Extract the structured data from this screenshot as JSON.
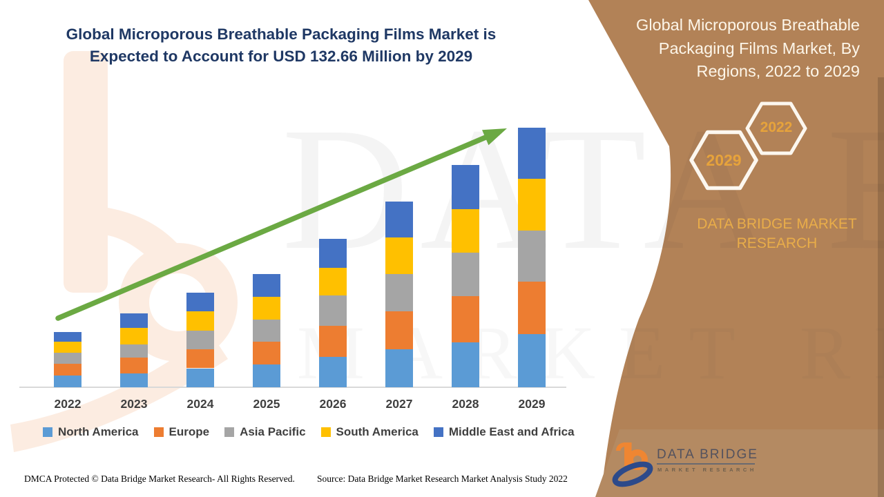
{
  "header": {
    "title_line1": "Global Microporous Breathable Packaging Films Market is",
    "title_line2": "Expected to Account for USD 132.66 Million by 2029"
  },
  "sidebar": {
    "title_line1": "Global Microporous Breathable",
    "title_line2": "Packaging Films Market, By",
    "title_line3": "Regions, 2022 to 2029",
    "hexagons": [
      {
        "label": "2029"
      },
      {
        "label": "2022"
      }
    ],
    "brand_line1": "DATA BRIDGE MARKET",
    "brand_line2": "RESEARCH",
    "colors": {
      "background_brown": "#b28257",
      "band_brown": "#b48a62",
      "gold_text": "#e7a33b",
      "cream_text": "#fdf6e9"
    }
  },
  "watermarks": {
    "big_text_line1": "DATA BRIDGE",
    "big_text_line2": "MARKET RESEARCH"
  },
  "chart_data": {
    "type": "bar",
    "stacked": true,
    "title": "Global Microporous Breathable Packaging Films Market is Expected to Account for USD 132.66 Million by 2029",
    "unit": "USD Million",
    "categories": [
      "2022",
      "2023",
      "2024",
      "2025",
      "2026",
      "2027",
      "2028",
      "2029"
    ],
    "series": [
      {
        "name": "North America",
        "color": "#5B9BD5",
        "values": [
          6.0,
          7.1,
          9.7,
          11.6,
          15.5,
          19.4,
          22.9,
          27.2
        ]
      },
      {
        "name": "Europe",
        "color": "#ED7D31",
        "values": [
          6.0,
          8.1,
          9.8,
          11.6,
          15.9,
          19.4,
          23.6,
          26.8
        ]
      },
      {
        "name": "Asia Pacific",
        "color": "#A5A5A5",
        "values": [
          5.6,
          6.7,
          9.6,
          11.5,
          15.5,
          19.1,
          22.2,
          26.1
        ]
      },
      {
        "name": "South America",
        "color": "#FFC000",
        "values": [
          5.6,
          8.5,
          9.7,
          11.6,
          14.1,
          18.7,
          22.2,
          26.5
        ]
      },
      {
        "name": "Middle East and Africa",
        "color": "#4472C4",
        "values": [
          5.0,
          7.4,
          9.6,
          11.5,
          14.8,
          18.3,
          22.6,
          26.1
        ]
      }
    ],
    "totals_estimated": [
      28.2,
      37.8,
      48.4,
      57.8,
      75.8,
      94.9,
      113.5,
      132.66
    ],
    "final_year_total_labelled": 132.66,
    "ylim": [
      0,
      140
    ],
    "grid": false,
    "legend_position": "bottom",
    "trend_arrow_color": "#6BA943"
  },
  "footer": {
    "left": "DMCA Protected © Data Bridge Market Research- All Rights Reserved.",
    "right": "Source: Data Bridge Market Research Market Analysis Study 2022"
  },
  "logo": {
    "name": "DATA BRIDGE",
    "subtext": "MARKET RESEARCH"
  }
}
